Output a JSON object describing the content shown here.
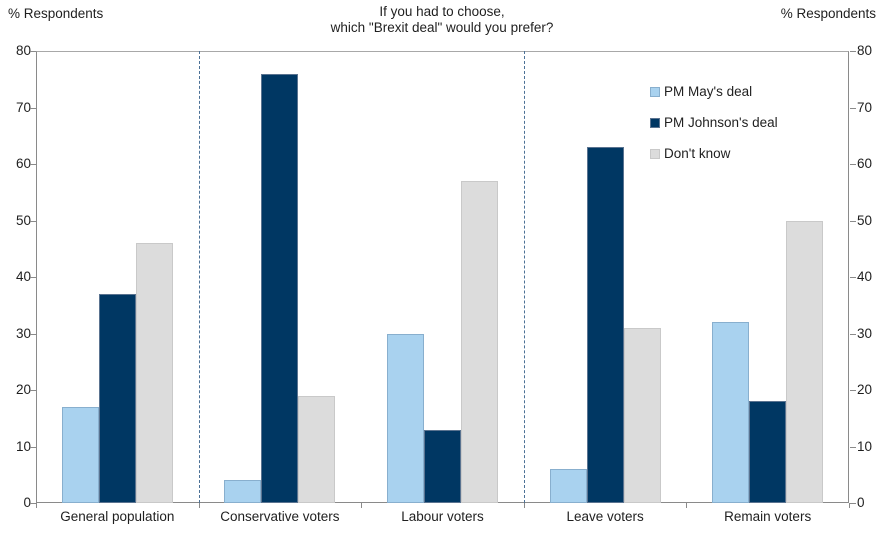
{
  "header": {
    "left_axis_title": "% Respondents",
    "right_axis_title": "% Respondents",
    "title_line1": "If you had to choose,",
    "title_line2": "which \"Brexit deal\" would you prefer?"
  },
  "chart_data": {
    "type": "bar",
    "title": "If you had to choose, which \"Brexit deal\" would you prefer?",
    "ylabel_left": "% Respondents",
    "ylabel_right": "% Respondents",
    "ylim": [
      0,
      80
    ],
    "ytick_step": 10,
    "grid": false,
    "legend_position": "top-right-inside",
    "categories": [
      "General population",
      "Conservative voters",
      "Labour voters",
      "Leave voters",
      "Remain voters"
    ],
    "series": [
      {
        "name": "PM May's deal",
        "color": "#A9D2EF",
        "border_color": "#88AFCE",
        "values": [
          17,
          4,
          30,
          6,
          32
        ]
      },
      {
        "name": "PM Johnson's deal",
        "color": "#003763",
        "border_color": "#5A7390",
        "values": [
          37,
          76,
          13,
          63,
          18
        ]
      },
      {
        "name": "Don't know",
        "color": "#DCDCDC",
        "border_color": "#C9C9C9",
        "values": [
          46,
          19,
          57,
          31,
          50
        ]
      }
    ],
    "separators_after_category_index": [
      0,
      2
    ],
    "separator_color": "#4C7196",
    "axis_color": "#8A8A8A"
  }
}
